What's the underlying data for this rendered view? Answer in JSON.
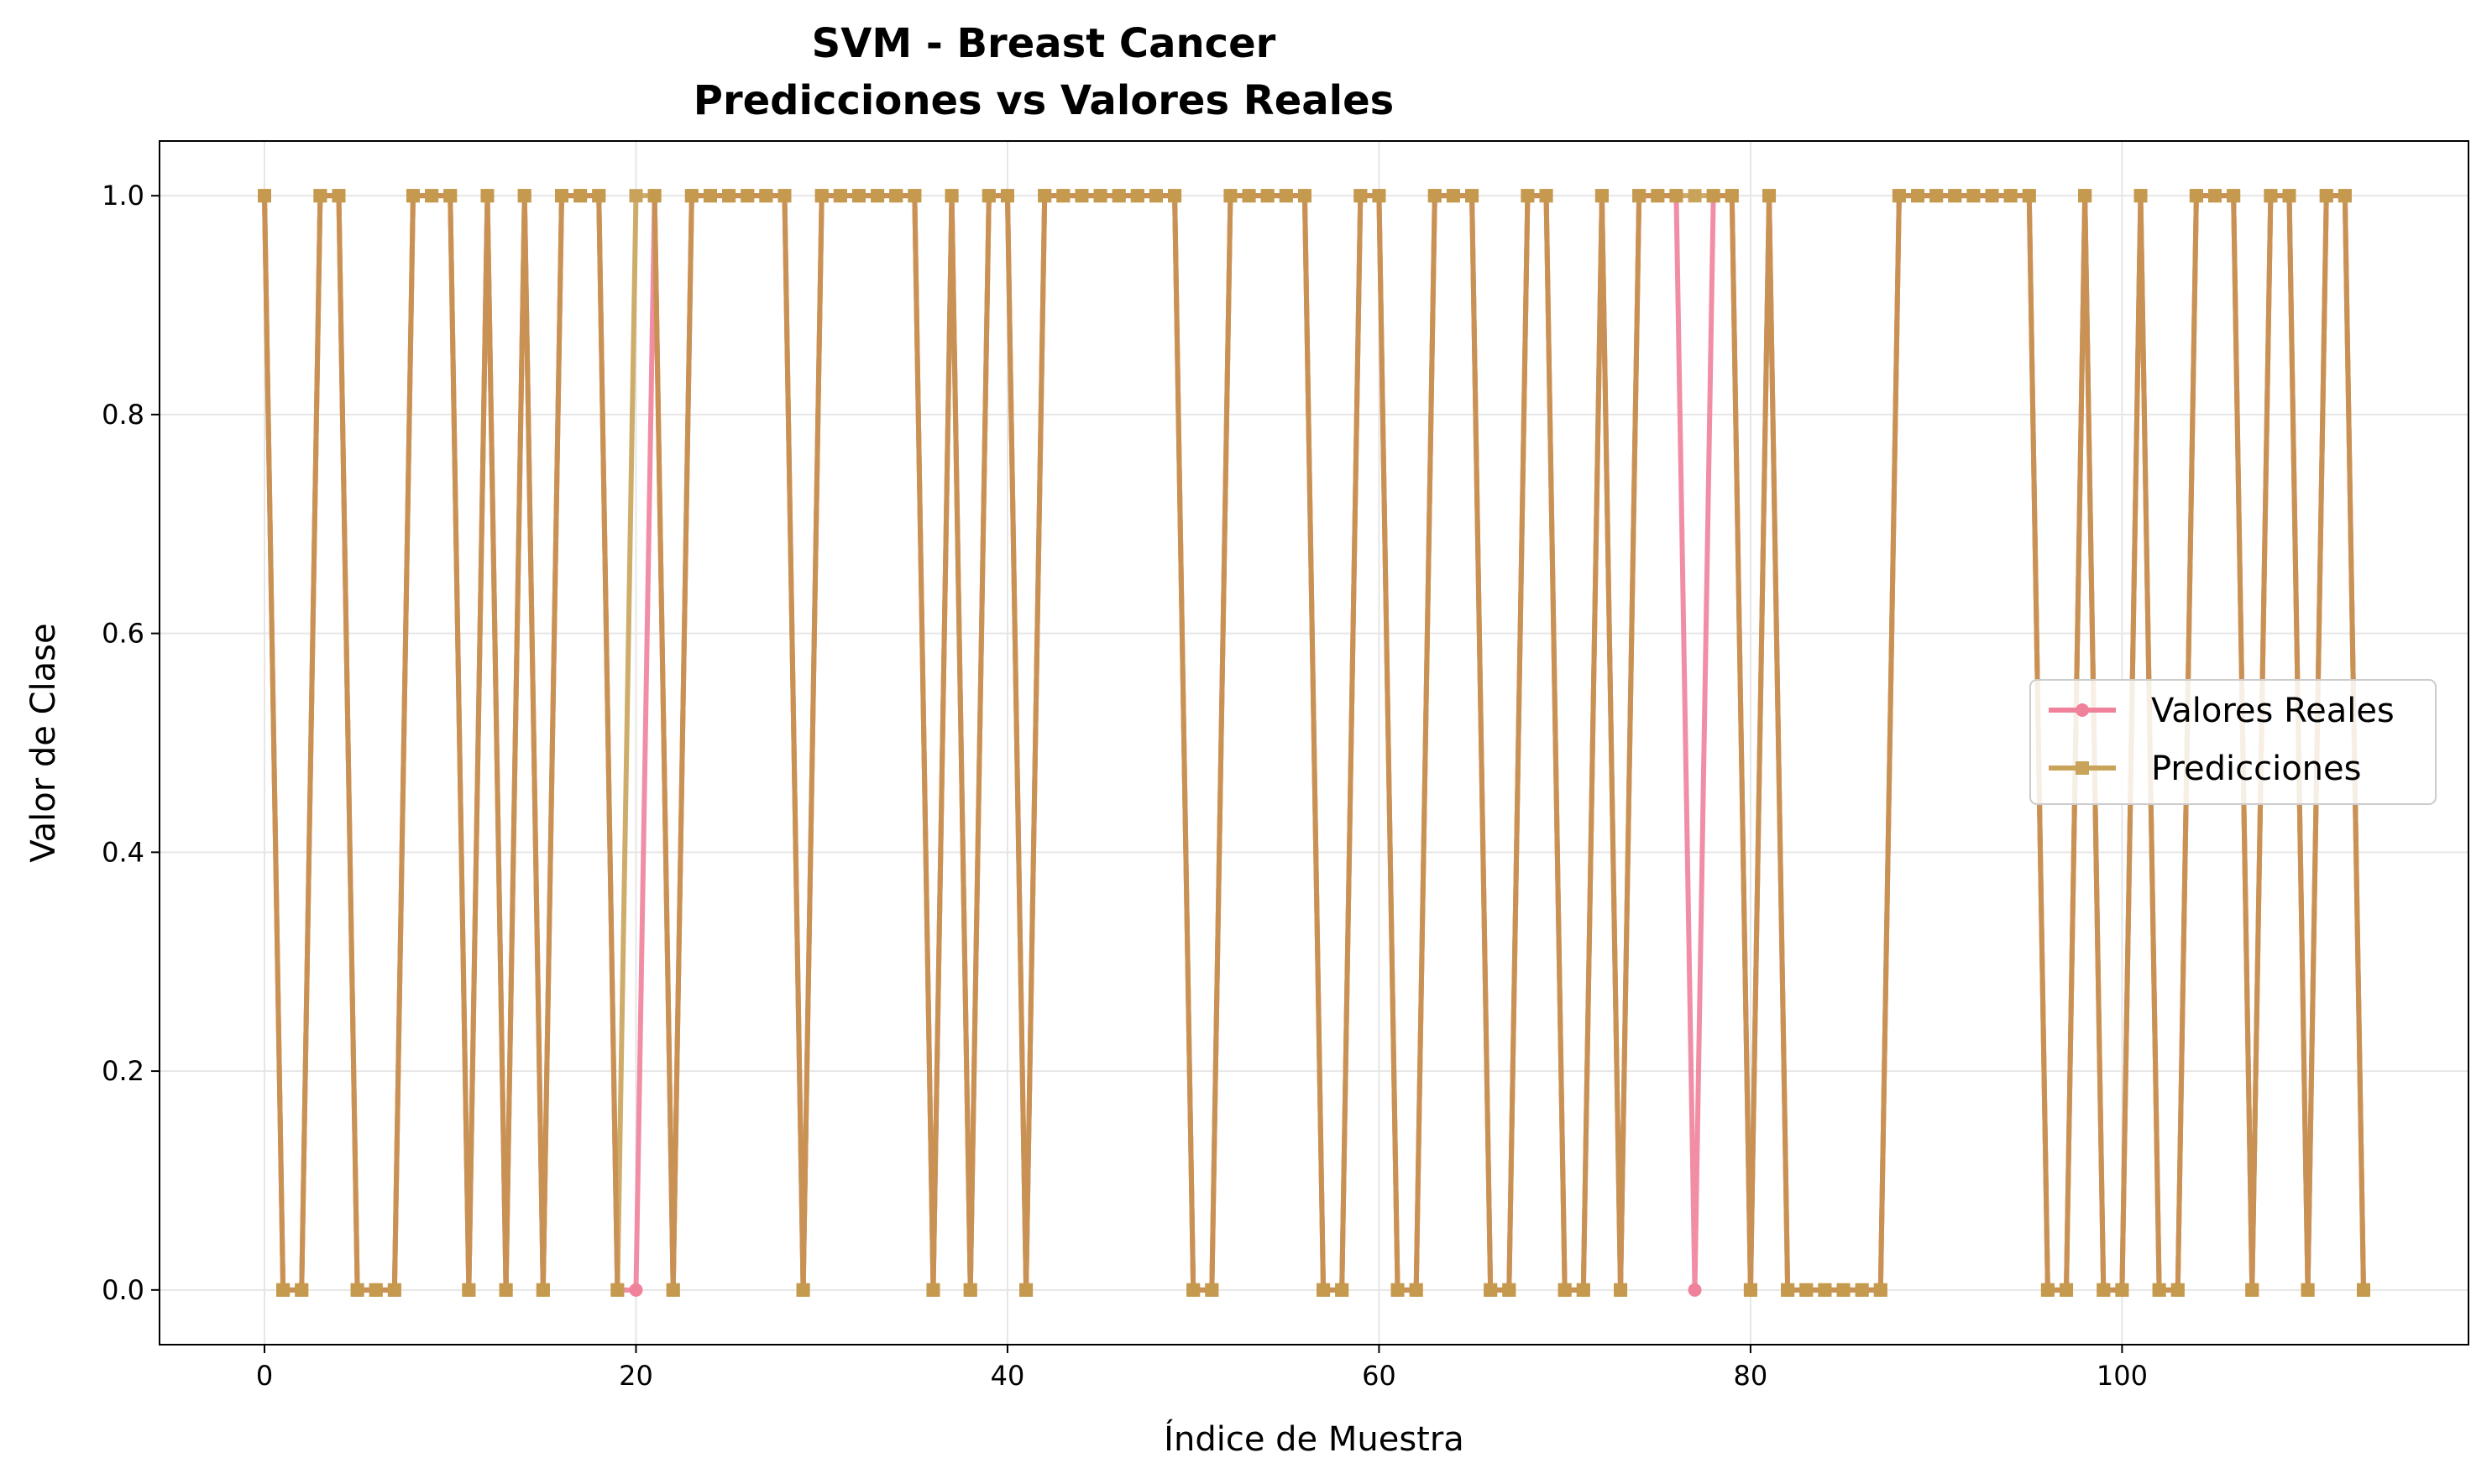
{
  "chart_data": {
    "type": "line",
    "title": "SVM - Breast Cancer",
    "subtitle": "Predicciones vs Valores Reales",
    "xlabel": "Índice de Muestra",
    "ylabel": "Valor de Clase",
    "xlim": [
      -5.65,
      118.65
    ],
    "ylim": [
      -0.05,
      1.05
    ],
    "x_ticks": [
      0,
      20,
      40,
      60,
      80,
      100
    ],
    "x_tick_labels": [
      "0",
      "20",
      "40",
      "60",
      "80",
      "100"
    ],
    "y_ticks": [
      0,
      0.2,
      0.4,
      0.6,
      0.8,
      1.0
    ],
    "y_tick_labels": [
      "0.0",
      "0.2",
      "0.4",
      "0.6",
      "0.8",
      "1.0"
    ],
    "grid": true,
    "legend_position": "center-right",
    "series": [
      {
        "name": "Valores Reales",
        "color": "#f0819b",
        "marker": "circle",
        "values": [
          1,
          0,
          0,
          1,
          1,
          0,
          0,
          0,
          1,
          1,
          1,
          0,
          1,
          0,
          1,
          0,
          1,
          1,
          1,
          0,
          0,
          1,
          0,
          1,
          1,
          1,
          1,
          1,
          1,
          0,
          1,
          1,
          1,
          1,
          1,
          1,
          0,
          1,
          0,
          1,
          1,
          0,
          1,
          1,
          1,
          1,
          1,
          1,
          1,
          1,
          0,
          0,
          1,
          1,
          1,
          1,
          1,
          0,
          0,
          1,
          1,
          0,
          0,
          1,
          1,
          1,
          0,
          0,
          1,
          1,
          0,
          0,
          1,
          0,
          1,
          1,
          1,
          0,
          1,
          1,
          0,
          1,
          0,
          0,
          0,
          0,
          0,
          0,
          1,
          1,
          1,
          1,
          1,
          1,
          1,
          1,
          0,
          0,
          1,
          0,
          0,
          1,
          0,
          0,
          1,
          1,
          1,
          0,
          1,
          1,
          0,
          1,
          1,
          0
        ]
      },
      {
        "name": "Predicciones",
        "color": "#c9a35a",
        "marker": "square",
        "values": [
          1,
          0,
          0,
          1,
          1,
          0,
          0,
          0,
          1,
          1,
          1,
          0,
          1,
          0,
          1,
          0,
          1,
          1,
          1,
          0,
          1,
          1,
          0,
          1,
          1,
          1,
          1,
          1,
          1,
          0,
          1,
          1,
          1,
          1,
          1,
          1,
          0,
          1,
          0,
          1,
          1,
          0,
          1,
          1,
          1,
          1,
          1,
          1,
          1,
          1,
          0,
          0,
          1,
          1,
          1,
          1,
          1,
          0,
          0,
          1,
          1,
          0,
          0,
          1,
          1,
          1,
          0,
          0,
          1,
          1,
          0,
          0,
          1,
          0,
          1,
          1,
          1,
          1,
          1,
          1,
          0,
          1,
          0,
          0,
          0,
          0,
          0,
          0,
          1,
          1,
          1,
          1,
          1,
          1,
          1,
          1,
          0,
          0,
          1,
          0,
          0,
          1,
          0,
          0,
          1,
          1,
          1,
          0,
          1,
          1,
          0,
          1,
          1,
          0
        ]
      }
    ],
    "overlap_color": "#c99254"
  }
}
